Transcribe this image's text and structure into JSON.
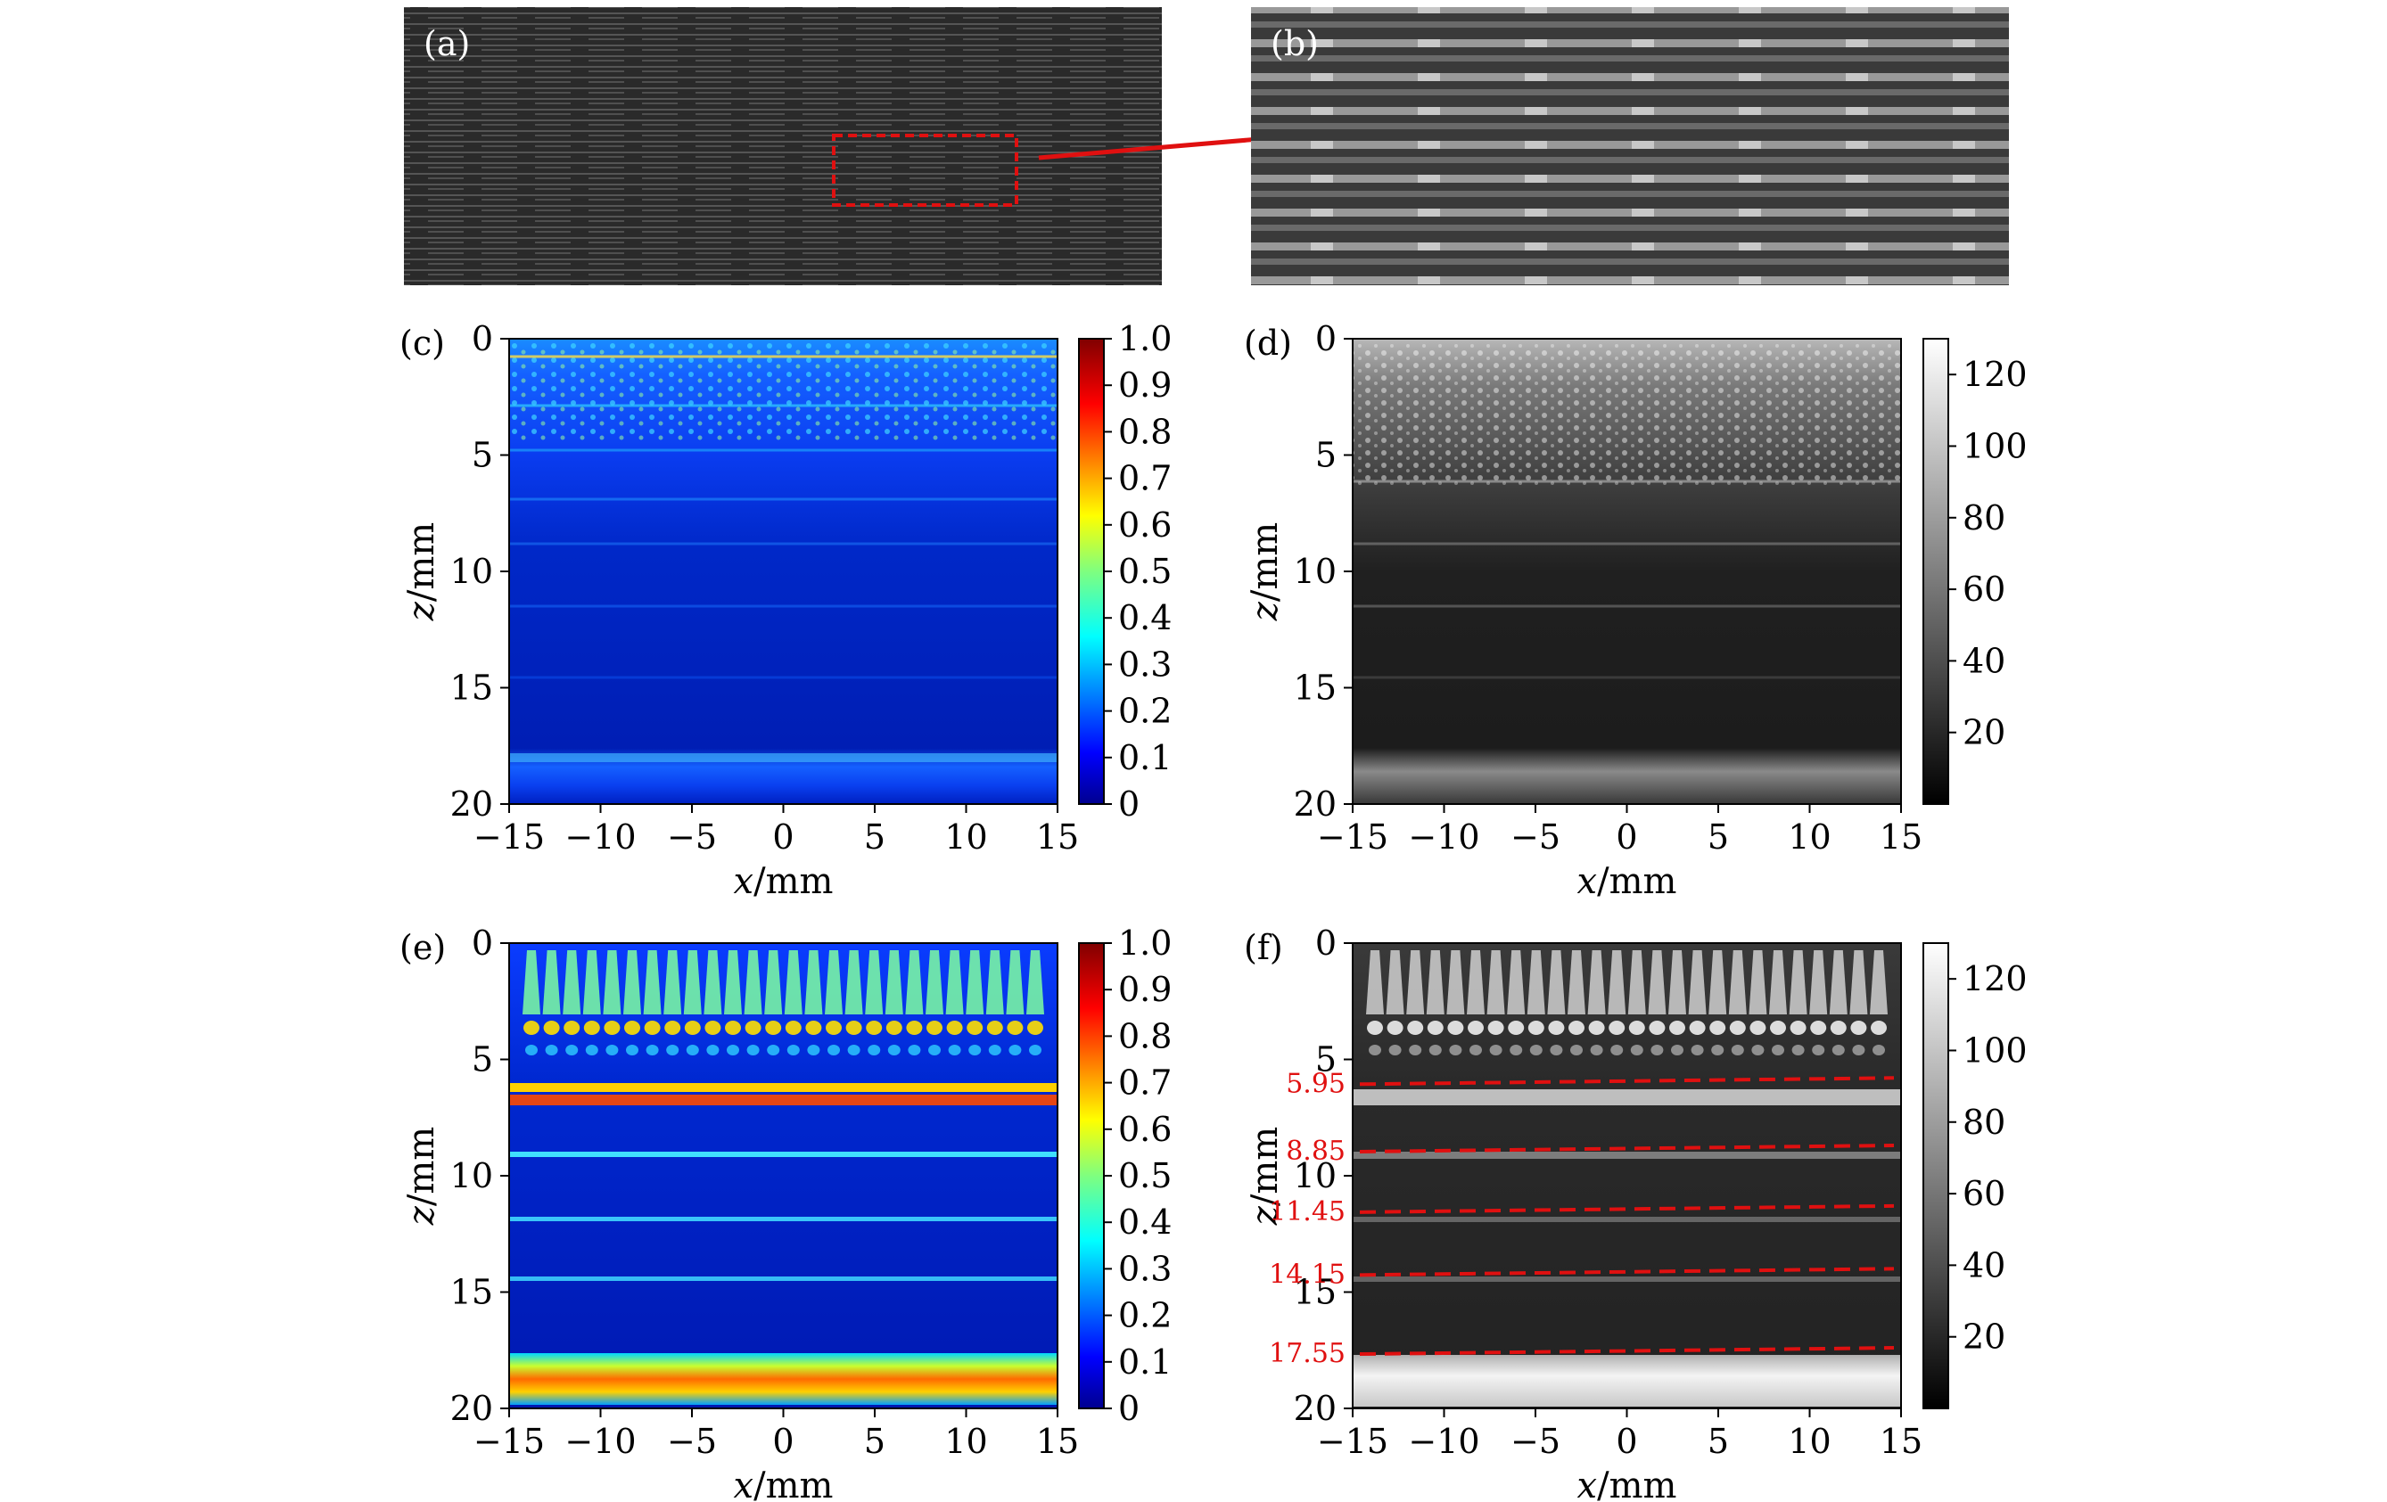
{
  "panels": {
    "a": {
      "label": "(a)"
    },
    "b": {
      "label": "(b)"
    },
    "c": {
      "label": "(c)"
    },
    "d": {
      "label": "(d)"
    },
    "e": {
      "label": "(e)"
    },
    "f": {
      "label": "(f)"
    }
  },
  "axes": {
    "xlabel_var": "x",
    "xlabel_unit": "/mm",
    "ylabel_var": "z",
    "ylabel_unit": "/mm",
    "xticks": [
      "−15",
      "−10",
      "−5",
      "0",
      "5",
      "10",
      "15"
    ],
    "yticks": [
      "0",
      "5",
      "10",
      "15",
      "20"
    ]
  },
  "colorbars": {
    "jet_ticks": [
      "1.0",
      "0.9",
      "0.8",
      "0.7",
      "0.6",
      "0.5",
      "0.4",
      "0.3",
      "0.2",
      "0.1",
      "0"
    ],
    "gray_ticks": [
      "120",
      "100",
      "80",
      "60",
      "40",
      "20"
    ]
  },
  "chart_data": [
    {
      "type": "heatmap",
      "panel": "c",
      "colormap": "jet",
      "xlim": [
        -15,
        15
      ],
      "ylim": [
        20,
        0
      ],
      "clim": [
        0,
        1.0
      ]
    },
    {
      "type": "heatmap",
      "panel": "d",
      "colormap": "gray",
      "xlim": [
        -15,
        15
      ],
      "ylim": [
        20,
        0
      ],
      "clim": [
        0,
        130
      ]
    },
    {
      "type": "heatmap",
      "panel": "e",
      "colormap": "jet",
      "xlim": [
        -15,
        15
      ],
      "ylim": [
        20,
        0
      ],
      "clim": [
        0,
        1.0
      ]
    },
    {
      "type": "heatmap",
      "panel": "f",
      "colormap": "gray",
      "xlim": [
        -15,
        15
      ],
      "ylim": [
        20,
        0
      ],
      "clim": [
        0,
        130
      ],
      "interfaces_mm": [
        5.95,
        8.85,
        11.45,
        14.15,
        17.55
      ],
      "interface_labels": [
        "5.95",
        "8.85",
        "11.45",
        "14.15",
        "17.55"
      ]
    }
  ],
  "colors": {
    "annotation": "#e01010"
  }
}
